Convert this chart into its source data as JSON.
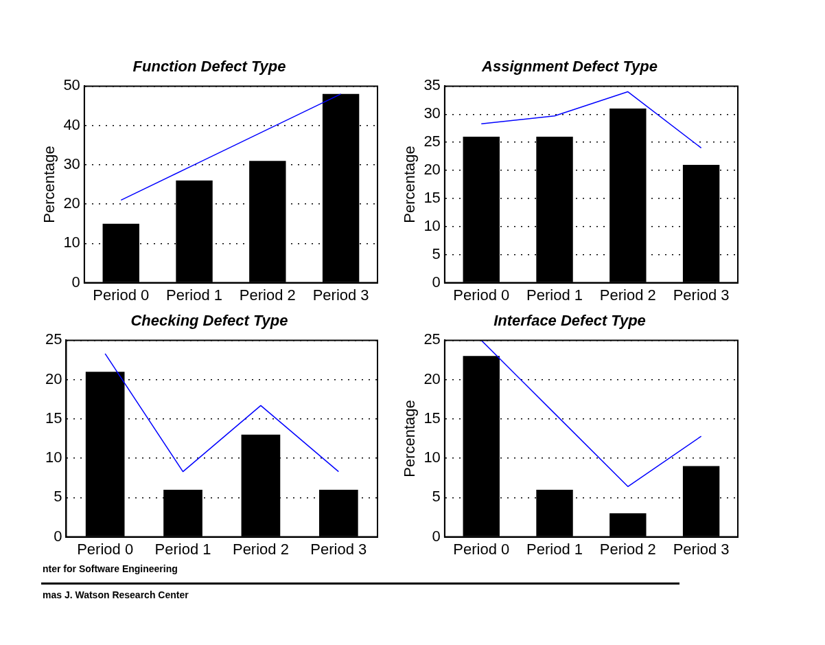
{
  "chart_data": [
    {
      "type": "bar",
      "title": "Function Defect Type",
      "ylabel": "Percentage",
      "categories": [
        "Period 0",
        "Period 1",
        "Period 2",
        "Period 3"
      ],
      "ylim": [
        0,
        50
      ],
      "yticks": [
        0,
        10,
        20,
        30,
        40,
        50
      ],
      "grid": "y",
      "legend": false,
      "marker": "none",
      "series": [
        {
          "color": "#000000",
          "values": [
            15,
            26,
            31,
            48
          ]
        },
        {
          "type": "line",
          "color": "#0000ff",
          "values": [
            21,
            30,
            39,
            48
          ]
        }
      ]
    },
    {
      "type": "bar",
      "title": "Assignment Defect Type",
      "ylabel": "Percentage",
      "categories": [
        "Period 0",
        "Period 1",
        "Period 2",
        "Period 3"
      ],
      "ylim": [
        0,
        35
      ],
      "yticks": [
        0,
        5,
        10,
        15,
        20,
        25,
        30,
        35
      ],
      "grid": "y",
      "legend": false,
      "marker": "none",
      "series": [
        {
          "color": "#000000",
          "values": [
            26,
            26,
            31,
            21
          ]
        },
        {
          "type": "line",
          "color": "#0000ff",
          "values": [
            28.3,
            29.7,
            34,
            24
          ]
        }
      ]
    },
    {
      "type": "bar",
      "title": "Checking Defect Type",
      "categories": [
        "Period 0",
        "Period 1",
        "Period 2",
        "Period 3"
      ],
      "ylim": [
        0,
        25
      ],
      "yticks": [
        0,
        5,
        10,
        15,
        20,
        25
      ],
      "grid": "y",
      "legend": false,
      "marker": "none",
      "annotations": [
        "nter for Software Engineering",
        "mas J. Watson Research Center"
      ],
      "series": [
        {
          "color": "#000000",
          "values": [
            21,
            6,
            13,
            6
          ]
        },
        {
          "type": "line",
          "color": "#0000ff",
          "values": [
            23.3,
            8.3,
            16.7,
            8.3
          ]
        }
      ]
    },
    {
      "type": "bar",
      "title": "Interface Defect Type",
      "ylabel": "Percentage",
      "categories": [
        "Period 0",
        "Period 1",
        "Period 2",
        "Period 3"
      ],
      "ylim": [
        0,
        25
      ],
      "yticks": [
        0,
        5,
        10,
        15,
        20,
        25
      ],
      "grid": "y",
      "legend": false,
      "marker": "none",
      "series": [
        {
          "color": "#000000",
          "values": [
            23,
            6,
            3,
            9
          ]
        },
        {
          "type": "line",
          "color": "#0000ff",
          "values": [
            25,
            15.7,
            6.4,
            12.8
          ]
        }
      ]
    }
  ]
}
